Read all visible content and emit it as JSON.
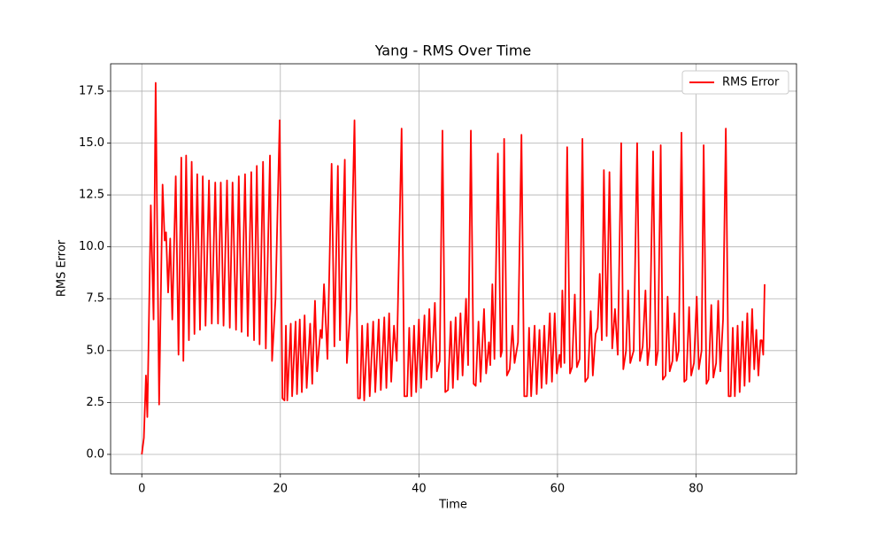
{
  "chart_data": {
    "type": "line",
    "title": "Yang - RMS Over Time",
    "xlabel": "Time",
    "ylabel": "RMS Error",
    "xlim": [
      -4.5,
      94.5
    ],
    "ylim": [
      -0.94,
      18.82
    ],
    "xticks": [
      0,
      20,
      40,
      60,
      80
    ],
    "yticks": [
      {
        "value": 0,
        "label": "0.0"
      },
      2.5,
      {
        "value": 5,
        "label": "5.0"
      },
      7.5,
      {
        "value": 10,
        "label": "10.0"
      },
      12.5,
      {
        "value": 15,
        "label": "15.0"
      },
      17.5
    ],
    "grid": true,
    "legend": "upper right",
    "x": [
      0,
      0.3,
      0.6,
      0.8,
      1.3,
      1.7,
      2.0,
      2.5,
      3.0,
      3.3,
      3.5,
      3.8,
      4.1,
      4.4,
      4.9,
      5.3,
      5.7,
      6.0,
      6.4,
      6.8,
      7.2,
      7.6,
      8.0,
      8.4,
      8.8,
      9.2,
      9.7,
      10.1,
      10.6,
      11.0,
      11.4,
      11.8,
      12.3,
      12.7,
      13.1,
      13.6,
      14.0,
      14.4,
      14.9,
      15.3,
      15.8,
      16.2,
      16.6,
      17.0,
      17.5,
      17.9,
      18.5,
      18.8,
      19.3,
      19.9,
      20.3,
      20.6,
      20.8,
      21.0,
      21.5,
      21.7,
      22.2,
      22.4,
      22.8,
      23.1,
      23.5,
      23.8,
      24.3,
      24.6,
      25.0,
      25.3,
      25.8,
      26.0,
      26.3,
      26.8,
      27.4,
      27.8,
      28.3,
      28.6,
      29.3,
      29.6,
      30.1,
      30.7,
      31.2,
      31.5,
      31.8,
      32.1,
      32.6,
      32.9,
      33.4,
      33.7,
      34.2,
      34.5,
      35.0,
      35.3,
      35.7,
      36.0,
      36.4,
      36.8,
      37.5,
      37.9,
      38.3,
      38.6,
      38.9,
      39.3,
      39.6,
      40.0,
      40.3,
      40.8,
      41.1,
      41.5,
      41.8,
      42.3,
      42.6,
      43.0,
      43.4,
      43.8,
      44.2,
      44.6,
      44.9,
      45.3,
      45.6,
      46.0,
      46.3,
      46.8,
      47.1,
      47.5,
      47.9,
      48.2,
      48.6,
      48.9,
      49.4,
      49.7,
      50.1,
      50.3,
      50.6,
      50.9,
      51.4,
      51.8,
      52.0,
      52.3,
      52.7,
      53.1,
      53.5,
      53.8,
      54.3,
      54.8,
      55.2,
      55.6,
      55.9,
      56.2,
      56.7,
      57.0,
      57.4,
      57.7,
      58.1,
      58.4,
      58.9,
      59.2,
      59.6,
      59.9,
      60.3,
      60.5,
      60.7,
      61.0,
      61.4,
      61.8,
      62.1,
      62.5,
      62.8,
      63.2,
      63.6,
      64.0,
      64.4,
      64.8,
      65.1,
      65.5,
      65.8,
      66.1,
      66.4,
      66.7,
      67.1,
      67.5,
      67.9,
      68.3,
      68.7,
      69.2,
      69.5,
      69.9,
      70.2,
      70.5,
      71.0,
      71.5,
      71.9,
      72.3,
      72.7,
      73.0,
      73.3,
      73.8,
      74.2,
      74.5,
      74.9,
      75.2,
      75.6,
      75.9,
      76.2,
      76.6,
      76.9,
      77.2,
      77.5,
      77.9,
      78.3,
      78.6,
      79.0,
      79.3,
      79.7,
      80.1,
      80.4,
      80.8,
      81.1,
      81.5,
      81.8,
      82.2,
      82.5,
      82.9,
      83.2,
      83.5,
      83.9,
      84.3,
      84.7,
      85.0,
      85.3,
      85.6,
      86.0,
      86.3,
      86.7,
      87.0,
      87.4,
      87.7,
      88.1,
      88.4,
      88.7,
      89.0,
      89.3,
      89.5,
      89.7,
      89.9
    ],
    "series": [
      {
        "name": "RMS Error",
        "color": "#ff0000",
        "values": [
          0,
          0.8,
          3.8,
          1.8,
          12,
          6.5,
          17.9,
          2.4,
          13,
          10.3,
          10.7,
          7.8,
          10.4,
          6.5,
          13.4,
          4.8,
          14.3,
          4.5,
          14.4,
          5.5,
          14.1,
          5.8,
          13.5,
          6.0,
          13.4,
          6.2,
          13.2,
          6.3,
          13.1,
          6.3,
          13.1,
          6.2,
          13.2,
          6.1,
          13.1,
          6.0,
          13.4,
          5.9,
          13.5,
          5.7,
          13.6,
          5.5,
          13.9,
          5.3,
          14.1,
          5.1,
          14.4,
          4.5,
          7.5,
          16.1,
          2.7,
          2.6,
          6.2,
          2.6,
          6.3,
          2.8,
          6.4,
          2.9,
          6.5,
          3.0,
          6.7,
          3.2,
          6.3,
          3.4,
          7.4,
          4.0,
          6.0,
          5.6,
          8.2,
          4.6,
          14.0,
          5.2,
          13.9,
          5.5,
          14.2,
          4.4,
          7.0,
          16.1,
          2.7,
          2.7,
          6.2,
          2.6,
          6.3,
          2.8,
          6.4,
          3.0,
          6.5,
          3.1,
          6.6,
          3.2,
          6.8,
          3.5,
          6.2,
          4.5,
          15.7,
          2.8,
          2.8,
          6.1,
          2.8,
          6.2,
          3.0,
          6.5,
          3.2,
          6.7,
          3.6,
          7.0,
          3.7,
          7.3,
          4.0,
          4.5,
          15.6,
          3.0,
          3.1,
          6.4,
          3.2,
          6.6,
          3.6,
          6.8,
          3.8,
          7.5,
          4.3,
          15.6,
          3.4,
          3.3,
          6.4,
          3.5,
          7.0,
          3.9,
          5.4,
          4.3,
          8.2,
          4.6,
          14.5,
          4.7,
          5.0,
          15.2,
          3.8,
          4.1,
          6.2,
          4.4,
          5.4,
          15.4,
          2.8,
          2.8,
          6.1,
          2.8,
          6.2,
          2.9,
          6.0,
          3.2,
          6.2,
          3.4,
          6.8,
          3.5,
          6.8,
          3.9,
          4.8,
          4.2,
          7.9,
          4.4,
          14.8,
          3.9,
          4.2,
          7.7,
          4.2,
          4.6,
          15.2,
          3.5,
          3.7,
          6.9,
          3.8,
          5.8,
          6.1,
          8.7,
          5.5,
          13.7,
          5.7,
          13.6,
          5.1,
          7.0,
          4.8,
          15.0,
          4.1,
          5.0,
          7.9,
          4.4,
          5.0,
          15.0,
          4.5,
          5.2,
          7.9,
          4.3,
          5.2,
          14.6,
          4.3,
          5.0,
          14.9,
          3.6,
          3.8,
          7.6,
          4.0,
          4.5,
          6.8,
          4.5,
          5.0,
          15.5,
          3.5,
          3.6,
          7.1,
          3.8,
          4.4,
          7.6,
          4.1,
          5.0,
          14.9,
          3.4,
          3.6,
          7.2,
          3.7,
          4.4,
          7.4,
          4.0,
          6.5,
          15.7,
          2.8,
          2.8,
          6.1,
          2.8,
          6.2,
          3.0,
          6.4,
          3.3,
          6.8,
          3.5,
          7.0,
          4.1,
          6.0,
          3.8,
          5.5,
          5.5,
          4.8,
          8.2
        ]
      }
    ]
  }
}
